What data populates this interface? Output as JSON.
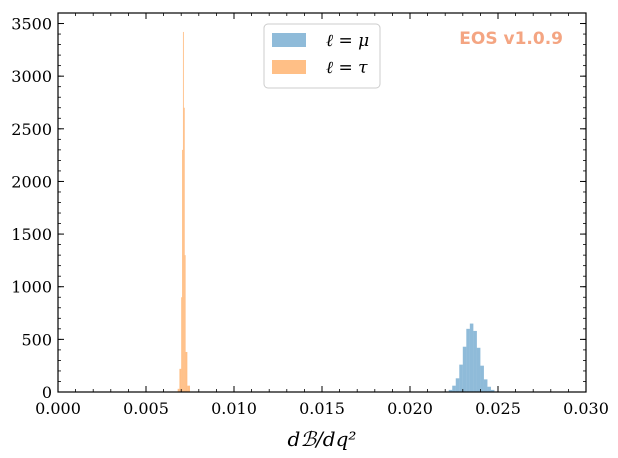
{
  "chart_data": {
    "type": "histogram",
    "xlabel": "dℬ/dq²",
    "ylabel": "",
    "xlim": [
      0.0,
      0.03
    ],
    "ylim": [
      0,
      3600
    ],
    "grid": false,
    "legend_position": "top-center",
    "watermark": "EOS v1.0.9",
    "x_ticks": [
      {
        "value": 0.0,
        "label": "0.000"
      },
      {
        "value": 0.005,
        "label": "0.005"
      },
      {
        "value": 0.01,
        "label": "0.010"
      },
      {
        "value": 0.015,
        "label": "0.015"
      },
      {
        "value": 0.02,
        "label": "0.020"
      },
      {
        "value": 0.025,
        "label": "0.025"
      },
      {
        "value": 0.03,
        "label": "0.030"
      }
    ],
    "y_ticks": [
      {
        "value": 0,
        "label": "0"
      },
      {
        "value": 500,
        "label": "500"
      },
      {
        "value": 1000,
        "label": "1000"
      },
      {
        "value": 1500,
        "label": "1500"
      },
      {
        "value": 2000,
        "label": "2000"
      },
      {
        "value": 2500,
        "label": "2500"
      },
      {
        "value": 3000,
        "label": "3000"
      },
      {
        "value": 3500,
        "label": "3500"
      }
    ],
    "series": [
      {
        "name": "ℓ = μ",
        "color": "#1f77b4",
        "opacity": 0.5,
        "bins": [
          {
            "x0": 0.022,
            "x1": 0.0222,
            "count": 5
          },
          {
            "x0": 0.0222,
            "x1": 0.0224,
            "count": 20
          },
          {
            "x0": 0.0224,
            "x1": 0.0226,
            "count": 60
          },
          {
            "x0": 0.0226,
            "x1": 0.0228,
            "count": 130
          },
          {
            "x0": 0.0228,
            "x1": 0.023,
            "count": 260
          },
          {
            "x0": 0.023,
            "x1": 0.0232,
            "count": 430
          },
          {
            "x0": 0.0232,
            "x1": 0.0234,
            "count": 600
          },
          {
            "x0": 0.0234,
            "x1": 0.0236,
            "count": 650
          },
          {
            "x0": 0.0236,
            "x1": 0.0238,
            "count": 580
          },
          {
            "x0": 0.0238,
            "x1": 0.024,
            "count": 420
          },
          {
            "x0": 0.024,
            "x1": 0.0242,
            "count": 250
          },
          {
            "x0": 0.0242,
            "x1": 0.0244,
            "count": 120
          },
          {
            "x0": 0.0244,
            "x1": 0.0246,
            "count": 50
          },
          {
            "x0": 0.0246,
            "x1": 0.0248,
            "count": 20
          },
          {
            "x0": 0.0248,
            "x1": 0.025,
            "count": 5
          }
        ]
      },
      {
        "name": "ℓ = τ",
        "color": "#ff7f0e",
        "opacity": 0.5,
        "bins": [
          {
            "x0": 0.0068,
            "x1": 0.0069,
            "count": 30
          },
          {
            "x0": 0.0069,
            "x1": 0.007,
            "count": 220
          },
          {
            "x0": 0.007,
            "x1": 0.00705,
            "count": 900
          },
          {
            "x0": 0.00705,
            "x1": 0.0071,
            "count": 2300
          },
          {
            "x0": 0.0071,
            "x1": 0.00715,
            "count": 3420
          },
          {
            "x0": 0.00715,
            "x1": 0.0072,
            "count": 2700
          },
          {
            "x0": 0.0072,
            "x1": 0.00725,
            "count": 1300
          },
          {
            "x0": 0.00725,
            "x1": 0.00735,
            "count": 380
          },
          {
            "x0": 0.00735,
            "x1": 0.0075,
            "count": 60
          }
        ]
      }
    ]
  }
}
